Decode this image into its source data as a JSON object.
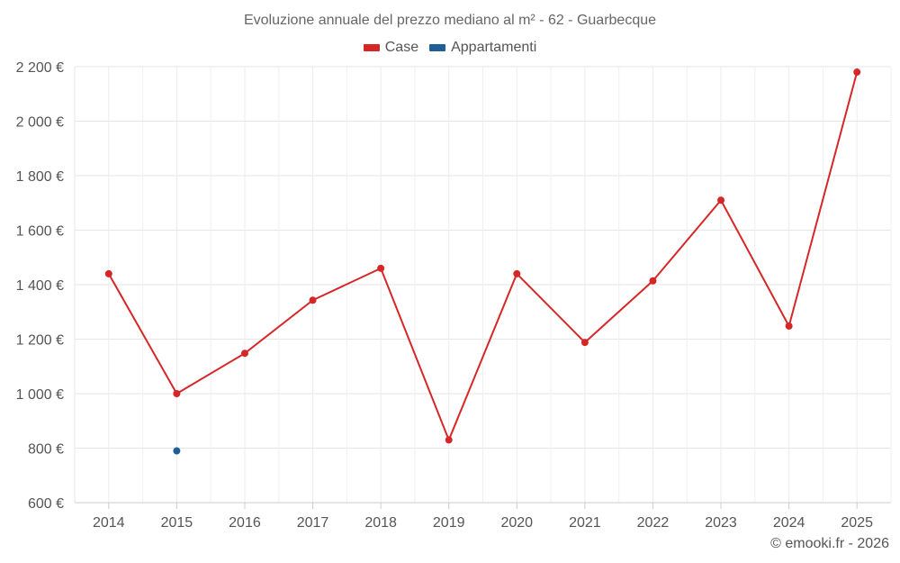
{
  "chart_data": {
    "type": "line",
    "title": "Evoluzione annuale del prezzo mediano al m² - 62 - Guarbecque",
    "xlabel": "",
    "ylabel": "",
    "categories": [
      "2014",
      "2015",
      "2016",
      "2017",
      "2018",
      "2019",
      "2020",
      "2021",
      "2022",
      "2023",
      "2024",
      "2025"
    ],
    "ylim": [
      600,
      2200
    ],
    "y_ticks": [
      600,
      800,
      1000,
      1200,
      1400,
      1600,
      1800,
      2000,
      2200
    ],
    "y_tick_labels": [
      "600 €",
      "800 €",
      "1 000 €",
      "1 200 €",
      "1 400 €",
      "1 600 €",
      "1 800 €",
      "2 000 €",
      "2 200 €"
    ],
    "grid": true,
    "legend_position": "top-center",
    "series": [
      {
        "name": "Case",
        "color": "#d62728",
        "values": [
          1440,
          1000,
          1148,
          1343,
          1460,
          830,
          1440,
          1188,
          1414,
          1710,
          1248,
          2180
        ]
      },
      {
        "name": "Appartamenti",
        "color": "#1f5f96",
        "values": [
          null,
          790,
          null,
          null,
          null,
          null,
          null,
          null,
          null,
          null,
          null,
          null
        ]
      }
    ]
  },
  "credit": "© emooki.fr - 2026"
}
